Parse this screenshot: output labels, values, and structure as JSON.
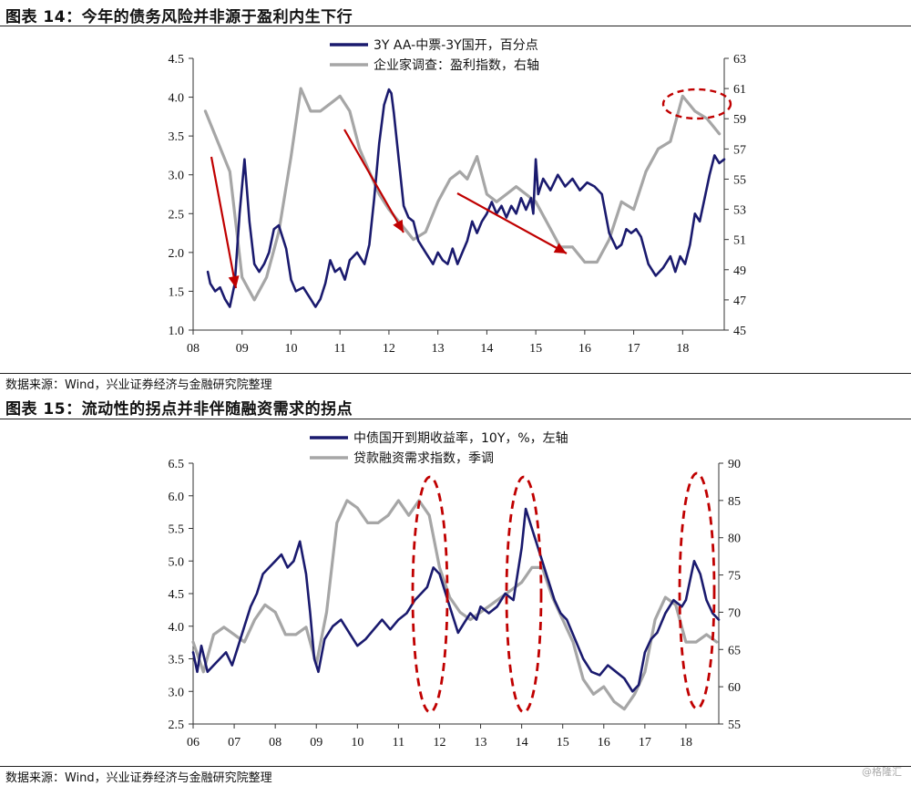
{
  "figure14": {
    "title": "图表 14：今年的债务风险并非源于盈利内生下行",
    "source": "数据来源：Wind，兴业证券经济与金融研究院整理"
  },
  "figure15": {
    "title": "图表 15：流动性的拐点并非伴随融资需求的拐点",
    "source": "数据来源：Wind，兴业证券经济与金融研究院整理"
  },
  "watermark": "@格隆汇",
  "colors": {
    "navy": "#1a1a6e",
    "gray": "#a6a6a6",
    "red": "#c00000",
    "text": "#111111"
  },
  "chart_data": [
    {
      "type": "line",
      "x_ticks": [
        "08",
        "09",
        "10",
        "11",
        "12",
        "13",
        "14",
        "15",
        "16",
        "17",
        "18"
      ],
      "x_range": [
        2008.0,
        2018.85
      ],
      "left_axis": {
        "range": [
          1.0,
          4.5
        ],
        "ticks": [
          "1.0",
          "1.5",
          "2.0",
          "2.5",
          "3.0",
          "3.5",
          "4.0",
          "4.5"
        ]
      },
      "right_axis": {
        "range": [
          45,
          63
        ],
        "ticks": [
          "45",
          "47",
          "49",
          "51",
          "53",
          "55",
          "57",
          "59",
          "61",
          "63"
        ]
      },
      "legend_placement": "top-center",
      "series": [
        {
          "name": "3Y AA-中票-3Y国开，百分点",
          "axis": "left",
          "color": "#1a1a6e",
          "x": [
            2008.3,
            2008.35,
            2008.45,
            2008.55,
            2008.65,
            2008.75,
            2008.85,
            2008.95,
            2009.05,
            2009.15,
            2009.25,
            2009.35,
            2009.45,
            2009.55,
            2009.65,
            2009.75,
            2009.9,
            2010.0,
            2010.1,
            2010.25,
            2010.4,
            2010.5,
            2010.6,
            2010.7,
            2010.8,
            2010.9,
            2011.0,
            2011.1,
            2011.2,
            2011.35,
            2011.5,
            2011.6,
            2011.7,
            2011.8,
            2011.9,
            2012.0,
            2012.05,
            2012.1,
            2012.2,
            2012.3,
            2012.4,
            2012.5,
            2012.6,
            2012.75,
            2012.9,
            2013.0,
            2013.1,
            2013.2,
            2013.3,
            2013.4,
            2013.5,
            2013.6,
            2013.7,
            2013.8,
            2013.9,
            2014.0,
            2014.1,
            2014.2,
            2014.3,
            2014.4,
            2014.5,
            2014.6,
            2014.7,
            2014.8,
            2014.9,
            2014.95,
            2015.0,
            2015.05,
            2015.15,
            2015.3,
            2015.45,
            2015.6,
            2015.75,
            2015.9,
            2016.05,
            2016.2,
            2016.35,
            2016.5,
            2016.65,
            2016.75,
            2016.85,
            2016.95,
            2017.05,
            2017.15,
            2017.3,
            2017.45,
            2017.6,
            2017.75,
            2017.85,
            2017.95,
            2018.05,
            2018.15,
            2018.25,
            2018.35,
            2018.45,
            2018.55,
            2018.65,
            2018.75,
            2018.85
          ],
          "y": [
            1.75,
            1.6,
            1.5,
            1.55,
            1.4,
            1.3,
            1.6,
            2.5,
            3.2,
            2.4,
            1.85,
            1.75,
            1.85,
            2.0,
            2.3,
            2.35,
            2.05,
            1.65,
            1.5,
            1.55,
            1.4,
            1.3,
            1.4,
            1.6,
            1.9,
            1.75,
            1.8,
            1.65,
            1.9,
            2.0,
            1.85,
            2.1,
            2.7,
            3.4,
            3.9,
            4.1,
            4.05,
            3.8,
            3.2,
            2.6,
            2.45,
            2.4,
            2.15,
            2.0,
            1.85,
            2.0,
            1.9,
            1.85,
            2.05,
            1.85,
            2.0,
            2.15,
            2.4,
            2.25,
            2.4,
            2.5,
            2.65,
            2.5,
            2.6,
            2.45,
            2.6,
            2.5,
            2.7,
            2.55,
            2.7,
            2.5,
            3.2,
            2.75,
            2.95,
            2.8,
            3.0,
            2.85,
            2.95,
            2.8,
            2.9,
            2.85,
            2.75,
            2.25,
            2.05,
            2.1,
            2.3,
            2.25,
            2.3,
            2.2,
            1.85,
            1.7,
            1.8,
            1.95,
            1.75,
            1.95,
            1.85,
            2.1,
            2.5,
            2.4,
            2.7,
            3.0,
            3.25,
            3.15,
            3.2
          ]
        },
        {
          "name": "企业家调查：盈利指数，右轴",
          "axis": "right",
          "color": "#a6a6a6",
          "x": [
            2008.25,
            2008.5,
            2008.75,
            2009.0,
            2009.25,
            2009.5,
            2009.75,
            2010.0,
            2010.2,
            2010.4,
            2010.6,
            2010.8,
            2011.0,
            2011.2,
            2011.4,
            2011.6,
            2011.8,
            2012.0,
            2012.25,
            2012.5,
            2012.75,
            2013.0,
            2013.25,
            2013.45,
            2013.6,
            2013.8,
            2014.0,
            2014.2,
            2014.4,
            2014.6,
            2014.8,
            2015.0,
            2015.25,
            2015.5,
            2015.75,
            2016.0,
            2016.25,
            2016.5,
            2016.75,
            2017.0,
            2017.25,
            2017.5,
            2017.75,
            2018.0,
            2018.25,
            2018.5,
            2018.75
          ],
          "y": [
            59.5,
            57.5,
            55.5,
            48.5,
            47.0,
            48.5,
            51.5,
            56.5,
            61.0,
            59.5,
            59.5,
            60.0,
            60.5,
            59.5,
            57.0,
            55.5,
            54.0,
            53.0,
            52.0,
            51.0,
            51.5,
            53.5,
            55.0,
            55.5,
            55.0,
            56.5,
            54.0,
            53.5,
            54.0,
            54.5,
            54.0,
            53.5,
            52.0,
            50.5,
            50.5,
            49.5,
            49.5,
            51.0,
            53.5,
            53.0,
            55.5,
            57.0,
            57.5,
            60.5,
            59.5,
            59.0,
            58.0
          ]
        }
      ]
    },
    {
      "type": "line",
      "x_ticks": [
        "06",
        "07",
        "08",
        "09",
        "10",
        "11",
        "12",
        "13",
        "14",
        "15",
        "16",
        "17",
        "18"
      ],
      "x_range": [
        2006.0,
        2018.8
      ],
      "left_axis": {
        "range": [
          2.5,
          6.5
        ],
        "ticks": [
          "2.5",
          "3.0",
          "3.5",
          "4.0",
          "4.5",
          "5.0",
          "5.5",
          "6.0",
          "6.5"
        ]
      },
      "right_axis": {
        "range": [
          55,
          90
        ],
        "ticks": [
          "55",
          "60",
          "65",
          "70",
          "75",
          "80",
          "85",
          "90"
        ]
      },
      "legend_placement": "top-center",
      "series": [
        {
          "name": "中债国开到期收益率，10Y，%，左轴",
          "axis": "left",
          "color": "#1a1a6e",
          "x": [
            2006.0,
            2006.1,
            2006.2,
            2006.35,
            2006.5,
            2006.65,
            2006.8,
            2006.95,
            2007.1,
            2007.25,
            2007.4,
            2007.55,
            2007.7,
            2007.85,
            2008.0,
            2008.15,
            2008.3,
            2008.45,
            2008.6,
            2008.75,
            2008.85,
            2008.95,
            2009.05,
            2009.2,
            2009.4,
            2009.6,
            2009.8,
            2010.0,
            2010.2,
            2010.4,
            2010.6,
            2010.8,
            2011.0,
            2011.2,
            2011.4,
            2011.55,
            2011.7,
            2011.85,
            2012.0,
            2012.15,
            2012.3,
            2012.45,
            2012.6,
            2012.75,
            2012.9,
            2013.0,
            2013.2,
            2013.4,
            2013.6,
            2013.8,
            2014.0,
            2014.1,
            2014.2,
            2014.35,
            2014.5,
            2014.65,
            2014.8,
            2014.95,
            2015.1,
            2015.3,
            2015.5,
            2015.7,
            2015.9,
            2016.1,
            2016.3,
            2016.5,
            2016.7,
            2016.85,
            2017.0,
            2017.15,
            2017.3,
            2017.5,
            2017.7,
            2017.9,
            2018.0,
            2018.1,
            2018.2,
            2018.35,
            2018.5,
            2018.65,
            2018.8
          ],
          "y": [
            3.6,
            3.3,
            3.7,
            3.3,
            3.4,
            3.5,
            3.6,
            3.4,
            3.7,
            4.0,
            4.3,
            4.5,
            4.8,
            4.9,
            5.0,
            5.1,
            4.9,
            5.0,
            5.3,
            4.8,
            4.2,
            3.5,
            3.3,
            3.8,
            4.0,
            4.1,
            3.9,
            3.7,
            3.8,
            3.95,
            4.1,
            3.95,
            4.1,
            4.2,
            4.4,
            4.5,
            4.6,
            4.9,
            4.8,
            4.5,
            4.2,
            3.9,
            4.05,
            4.2,
            4.1,
            4.3,
            4.2,
            4.3,
            4.5,
            4.4,
            5.2,
            5.8,
            5.6,
            5.3,
            5.0,
            4.7,
            4.4,
            4.2,
            4.1,
            3.8,
            3.5,
            3.3,
            3.25,
            3.4,
            3.3,
            3.2,
            3.0,
            3.1,
            3.6,
            3.8,
            3.9,
            4.2,
            4.4,
            4.3,
            4.4,
            4.7,
            5.0,
            4.8,
            4.4,
            4.2,
            4.1
          ]
        },
        {
          "name": "贷款融资需求指数，季调",
          "axis": "right",
          "color": "#a6a6a6",
          "x": [
            2006.0,
            2006.25,
            2006.5,
            2006.75,
            2007.0,
            2007.25,
            2007.5,
            2007.75,
            2008.0,
            2008.25,
            2008.5,
            2008.75,
            2009.0,
            2009.25,
            2009.5,
            2009.75,
            2010.0,
            2010.25,
            2010.5,
            2010.75,
            2011.0,
            2011.25,
            2011.5,
            2011.75,
            2012.0,
            2012.25,
            2012.5,
            2012.75,
            2013.0,
            2013.25,
            2013.5,
            2013.75,
            2014.0,
            2014.25,
            2014.5,
            2014.75,
            2015.0,
            2015.25,
            2015.5,
            2015.75,
            2016.0,
            2016.25,
            2016.5,
            2016.75,
            2017.0,
            2017.25,
            2017.5,
            2017.75,
            2018.0,
            2018.25,
            2018.5,
            2018.75
          ],
          "y": [
            66,
            62,
            67,
            68,
            67,
            66,
            69,
            71,
            70,
            67,
            67,
            68,
            63,
            70,
            82,
            85,
            84,
            82,
            82,
            83,
            85,
            83,
            85,
            83,
            76,
            72,
            70,
            69,
            70,
            71,
            72,
            73,
            74,
            76,
            76,
            72,
            69,
            66,
            61,
            59,
            60,
            58,
            57,
            59,
            62,
            69,
            72,
            71,
            66,
            66,
            67,
            66
          ]
        }
      ]
    }
  ]
}
